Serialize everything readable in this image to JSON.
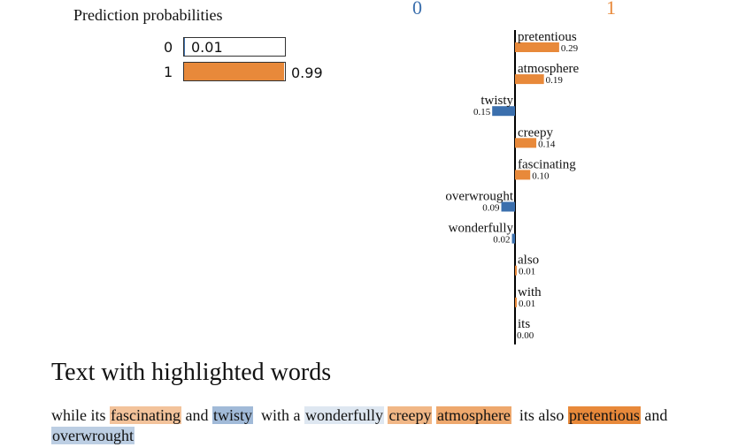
{
  "proba": {
    "title": "Prediction probabilities",
    "rows": [
      {
        "label": "0",
        "value": 0.01,
        "text": "0.01",
        "color": "#3b6fad"
      },
      {
        "label": "1",
        "value": 0.99,
        "text": "0.99",
        "color": "#e8893a"
      }
    ]
  },
  "classes": {
    "negative": "0",
    "positive": "1"
  },
  "chart_data": {
    "type": "bar",
    "orientation": "horizontal",
    "categories": [
      "pretentious",
      "atmosphere",
      "twisty",
      "creepy",
      "fascinating",
      "overwrought",
      "wonderfully",
      "also",
      "with",
      "its"
    ],
    "values": [
      0.29,
      0.19,
      -0.15,
      0.14,
      0.1,
      -0.09,
      -0.02,
      0.01,
      0.01,
      0.0
    ],
    "value_labels": [
      "0.29",
      "0.19",
      "0.15",
      "0.14",
      "0.10",
      "0.09",
      "0.02",
      "0.01",
      "0.01",
      "0.00"
    ],
    "colors": {
      "negative": "#3b6fad",
      "positive": "#e8893a"
    },
    "grid": false
  },
  "text_panel": {
    "title": "Text with highlighted words",
    "tokens": [
      {
        "t": "while its ",
        "w": 0
      },
      {
        "t": "fascinating",
        "w": 0.1
      },
      {
        "t": " and ",
        "w": 0
      },
      {
        "t": "twisty",
        "w": -0.15
      },
      {
        "t": "  with a ",
        "w": 0
      },
      {
        "t": "wonderfully",
        "w": -0.02
      },
      {
        "t": " ",
        "w": 0
      },
      {
        "t": "creepy",
        "w": 0.14
      },
      {
        "t": " ",
        "w": 0
      },
      {
        "t": "atmosphere",
        "w": 0.19
      },
      {
        "t": "  its also ",
        "w": 0
      },
      {
        "t": "pretentious",
        "w": 0.29
      },
      {
        "t": " and ",
        "w": 0
      },
      {
        "t": "overwrought",
        "w": -0.09
      }
    ]
  }
}
